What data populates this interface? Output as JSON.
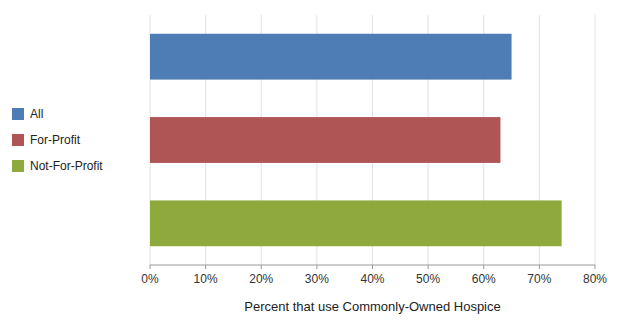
{
  "chart_data": {
    "type": "bar",
    "orientation": "horizontal",
    "categories": [
      "All",
      "For-Profit",
      "Not-For-Profit"
    ],
    "values": [
      0.65,
      0.63,
      0.74
    ],
    "colors": [
      "#4e7db5",
      "#b05555",
      "#8faa3c"
    ],
    "xlabel": "Percent that use Commonly-Owned Hospice",
    "xlim": [
      0,
      0.8
    ],
    "xticks": [
      {
        "value": 0.0,
        "label": "0%"
      },
      {
        "value": 0.1,
        "label": "10%"
      },
      {
        "value": 0.2,
        "label": "20%"
      },
      {
        "value": 0.3,
        "label": "30%"
      },
      {
        "value": 0.4,
        "label": "40%"
      },
      {
        "value": 0.5,
        "label": "50%"
      },
      {
        "value": 0.6,
        "label": "60%"
      },
      {
        "value": 0.7,
        "label": "70%"
      },
      {
        "value": 0.8,
        "label": "80%"
      }
    ],
    "grid": true,
    "legend": "left",
    "tick_labels": "x"
  }
}
